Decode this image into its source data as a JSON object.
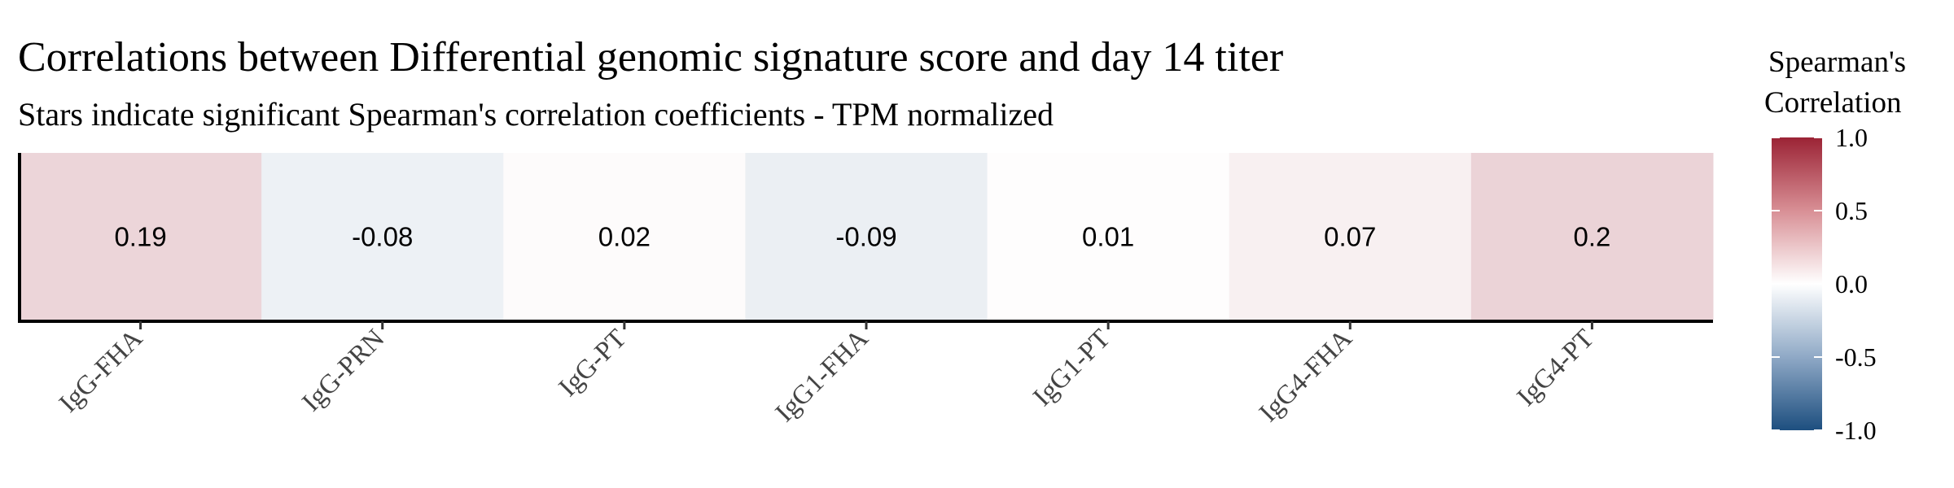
{
  "chart_data": {
    "type": "heatmap",
    "title": "Correlations between Differential genomic signature score and day 14 titer",
    "subtitle": "Stars indicate significant Spearman's correlation coefficients - TPM normalized",
    "categories": [
      "IgG-FHA",
      "IgG-PRN",
      "IgG-PT",
      "IgG1-FHA",
      "IgG1-PT",
      "IgG4-FHA",
      "IgG4-PT"
    ],
    "values": [
      0.19,
      -0.08,
      0.02,
      -0.09,
      0.01,
      0.07,
      0.2
    ],
    "value_labels": [
      "0.19",
      "-0.08",
      "0.02",
      "-0.09",
      "0.01",
      "0.07",
      "0.2"
    ],
    "legend": {
      "title_lines": [
        "Spearman's",
        "Correlation"
      ],
      "limits": [
        -1.0,
        1.0
      ],
      "ticks": [
        1.0,
        0.5,
        0.0,
        -0.5,
        -1.0
      ],
      "tick_labels": [
        "1.0",
        "0.5",
        "0.0",
        "-0.5",
        "-1.0"
      ],
      "colors": {
        "low": "#1d4f7f",
        "mid": "#ffffff",
        "high": "#9b2335"
      },
      "placement": "right"
    },
    "grid": false
  }
}
